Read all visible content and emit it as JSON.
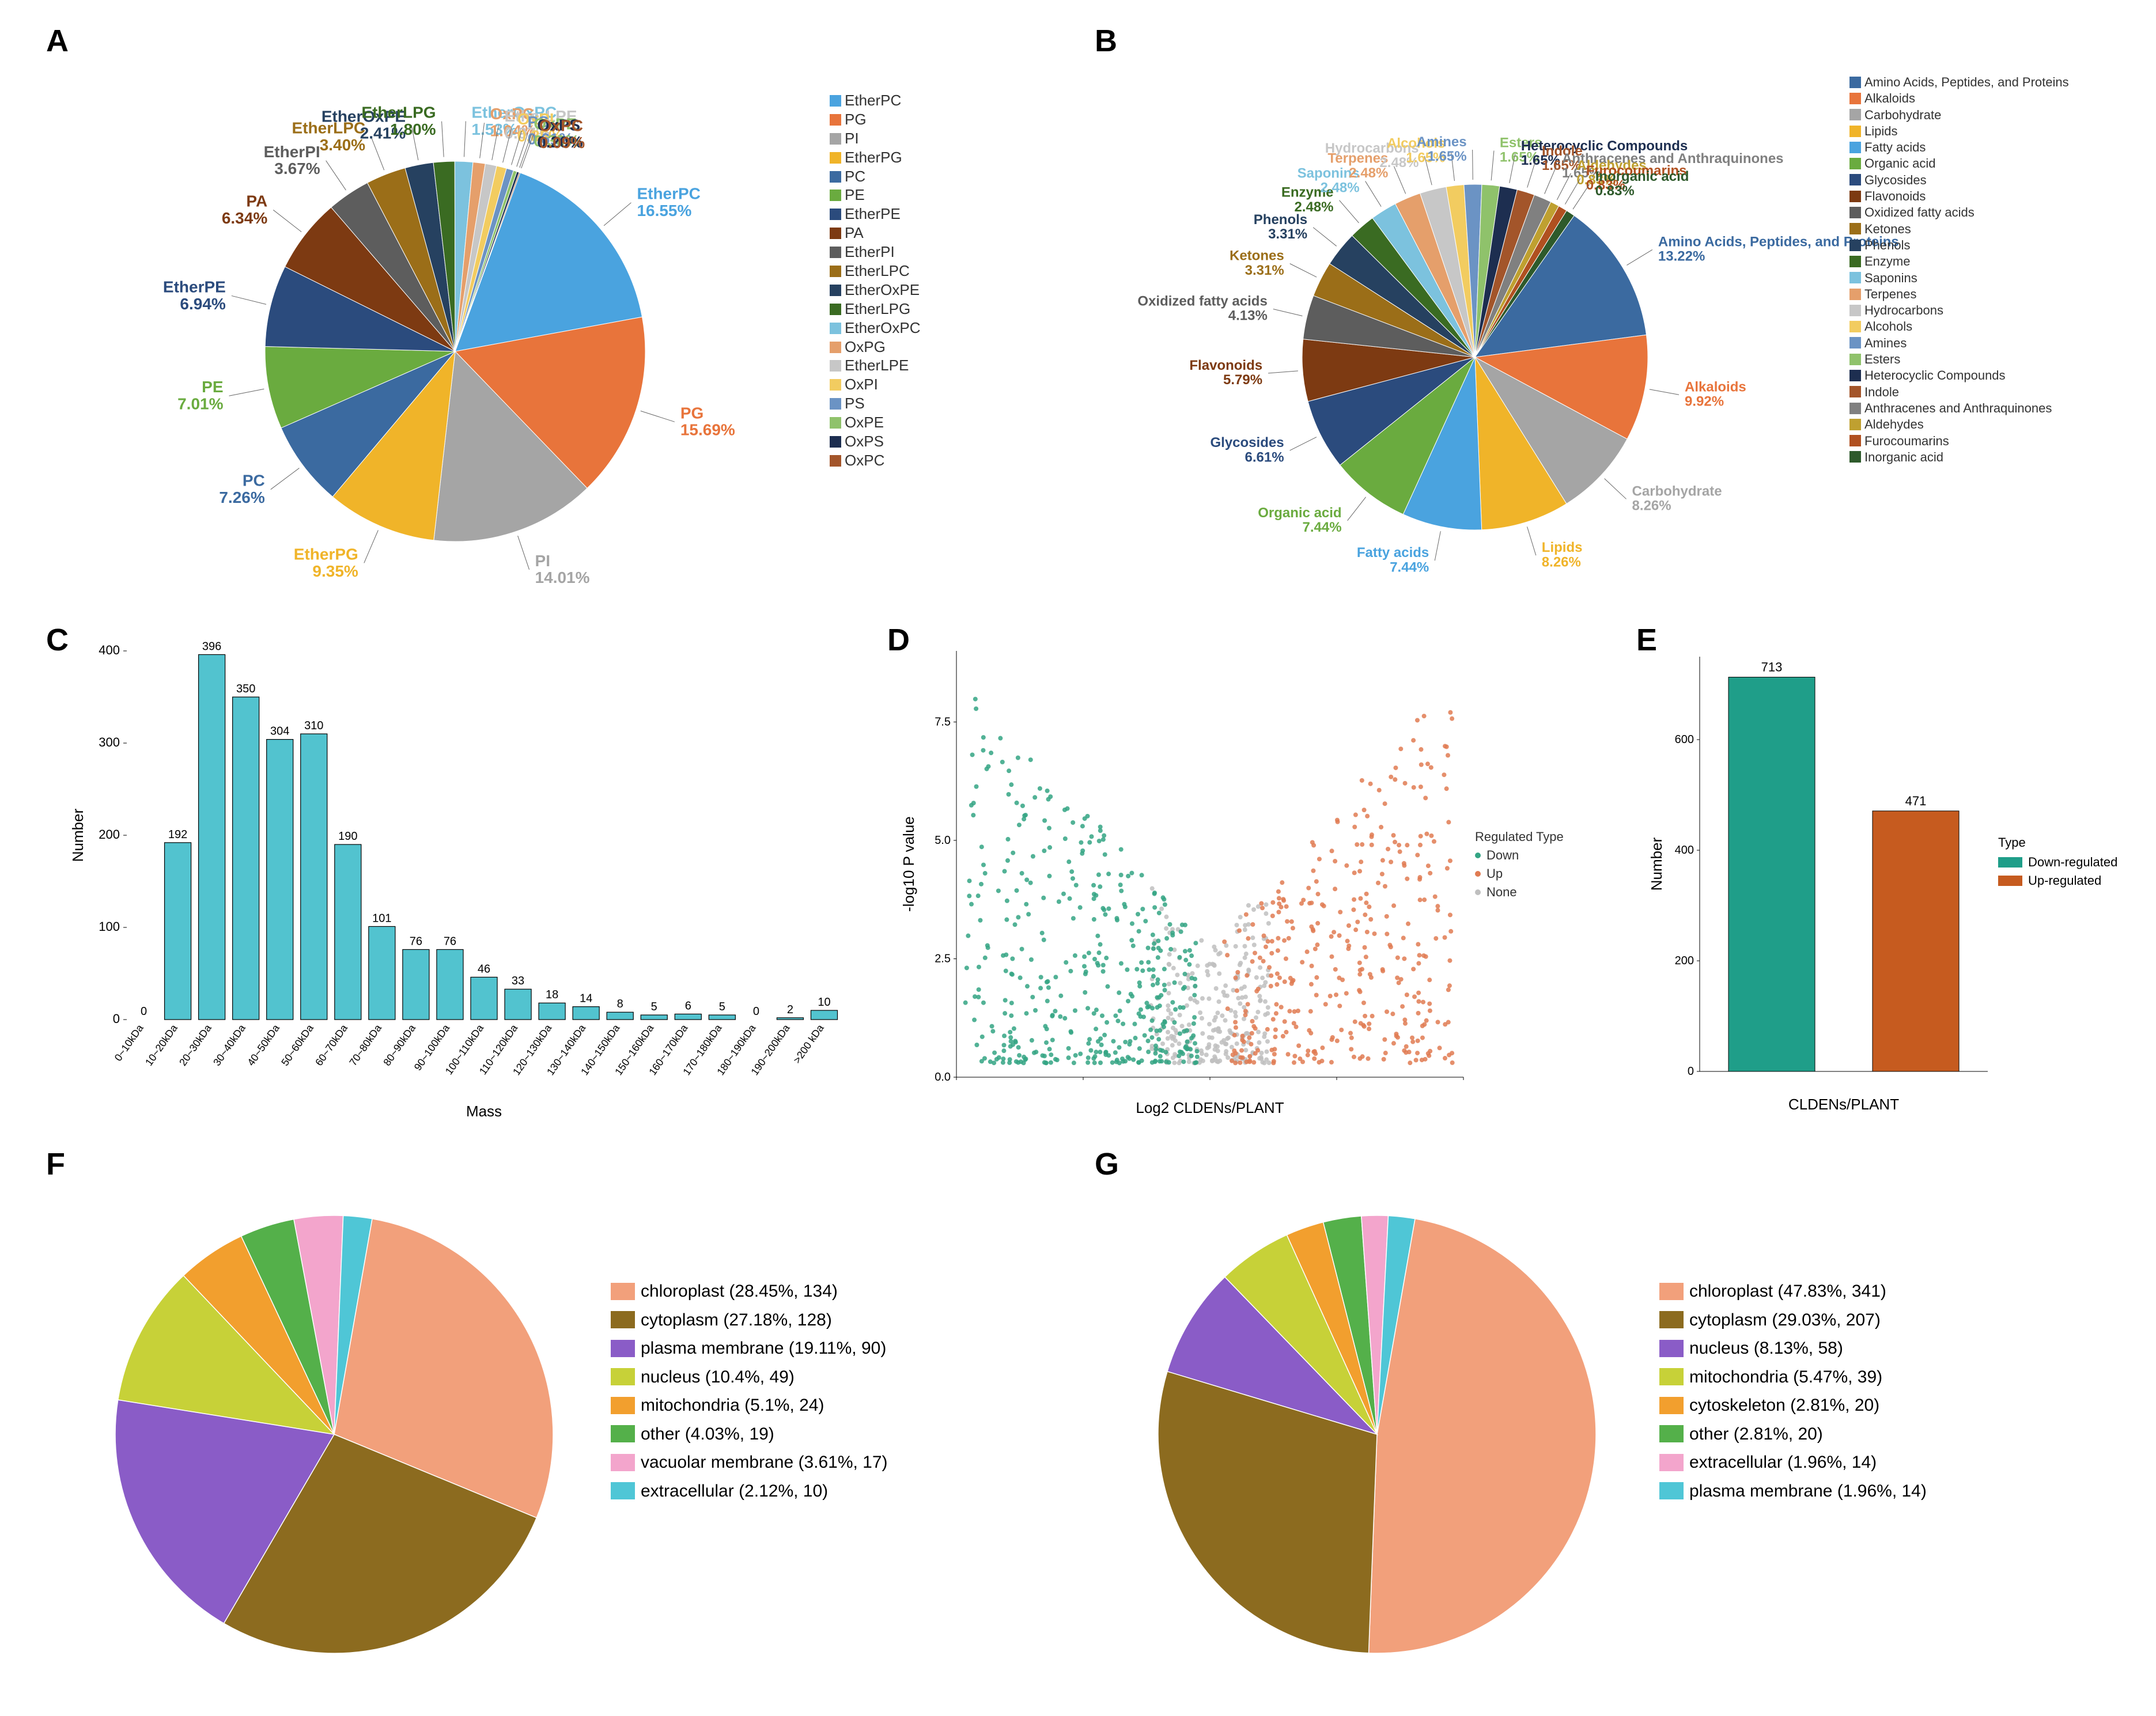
{
  "panels": {
    "A": "A",
    "B": "B",
    "C": "C",
    "D": "D",
    "E": "E",
    "F": "F",
    "G": "G"
  },
  "pieA": {
    "type": "pie",
    "title_fontsize": 28,
    "callout_fontsize": 28,
    "legend_fontsize": 26,
    "slices": [
      {
        "label": "EtherPC",
        "pct": 16.55,
        "color": "#4aa3df"
      },
      {
        "label": "PG",
        "pct": 15.69,
        "color": "#e8743b"
      },
      {
        "label": "PI",
        "pct": 14.01,
        "color": "#a5a5a5"
      },
      {
        "label": "EtherPG",
        "pct": 9.35,
        "color": "#f0b429"
      },
      {
        "label": "PC",
        "pct": 7.26,
        "color": "#3b6aa0"
      },
      {
        "label": "PE",
        "pct": 7.01,
        "color": "#6aab3f"
      },
      {
        "label": "EtherPE",
        "pct": 6.94,
        "color": "#2b4b7d"
      },
      {
        "label": "PA",
        "pct": 6.34,
        "color": "#7d3a12"
      },
      {
        "label": "EtherPI",
        "pct": 3.67,
        "color": "#5d5d5d"
      },
      {
        "label": "EtherLPC",
        "pct": 3.4,
        "color": "#9b6e18"
      },
      {
        "label": "EtherOxPE",
        "pct": 2.41,
        "color": "#264160"
      },
      {
        "label": "EtherLPG",
        "pct": 1.8,
        "color": "#3a6b22"
      },
      {
        "label": "EtherOxPC",
        "pct": 1.53,
        "color": "#7cc2de"
      },
      {
        "label": "OxPG",
        "pct": 1.04,
        "color": "#e59f6b"
      },
      {
        "label": "EtherLPE",
        "pct": 0.97,
        "color": "#c7c7c7"
      },
      {
        "label": "OxPI",
        "pct": 0.85,
        "color": "#f2cc60"
      },
      {
        "label": "PS",
        "pct": 0.61,
        "color": "#6b93c4"
      },
      {
        "label": "OxPE",
        "pct": 0.3,
        "color": "#8fc26b"
      },
      {
        "label": "OxPS",
        "pct": 0.2,
        "color": "#1d2e50"
      },
      {
        "label": "OxPC",
        "pct": 0.09,
        "color": "#a3552a"
      }
    ]
  },
  "pieB": {
    "type": "pie",
    "legend_fontsize": 22,
    "callout_fontsize": 24,
    "slices": [
      {
        "label": "Amino Acids, Peptides, and Proteins",
        "pct": 13.22,
        "color": "#3b6aa0"
      },
      {
        "label": "Alkaloids",
        "pct": 9.92,
        "color": "#e8743b"
      },
      {
        "label": "Carbohydrate",
        "pct": 8.26,
        "color": "#a5a5a5"
      },
      {
        "label": "Lipids",
        "pct": 8.26,
        "color": "#f0b429"
      },
      {
        "label": "Fatty acids",
        "pct": 7.44,
        "color": "#4aa3df"
      },
      {
        "label": "Organic acid",
        "pct": 7.44,
        "color": "#6aab3f"
      },
      {
        "label": "Glycosides",
        "pct": 6.61,
        "color": "#2b4b7d"
      },
      {
        "label": "Flavonoids",
        "pct": 5.79,
        "color": "#7d3a12"
      },
      {
        "label": "Oxidized fatty acids",
        "pct": 4.13,
        "color": "#5d5d5d"
      },
      {
        "label": "Ketones",
        "pct": 3.31,
        "color": "#9b6e18"
      },
      {
        "label": "Phenols",
        "pct": 3.31,
        "color": "#264160"
      },
      {
        "label": "Enzyme",
        "pct": 2.48,
        "color": "#3a6b22"
      },
      {
        "label": "Saponins",
        "pct": 2.48,
        "color": "#7cc2de"
      },
      {
        "label": "Terpenes",
        "pct": 2.48,
        "color": "#e59f6b"
      },
      {
        "label": "Hydrocarbons",
        "pct": 2.48,
        "color": "#c7c7c7"
      },
      {
        "label": "Alcohols",
        "pct": 1.65,
        "color": "#f2cc60"
      },
      {
        "label": "Amines",
        "pct": 1.65,
        "color": "#6b93c4"
      },
      {
        "label": "Esters",
        "pct": 1.65,
        "color": "#8fc26b"
      },
      {
        "label": "Heterocyclic Compounds",
        "pct": 1.65,
        "color": "#1d2e50"
      },
      {
        "label": "Indole",
        "pct": 1.65,
        "color": "#a3552a"
      },
      {
        "label": "Anthracenes and Anthraquinones",
        "pct": 1.65,
        "color": "#808080"
      },
      {
        "label": "Aldehydes",
        "pct": 0.83,
        "color": "#bfa030"
      },
      {
        "label": "Furocoumarins",
        "pct": 0.83,
        "color": "#b05020"
      },
      {
        "label": "Inorganic acid",
        "pct": 0.83,
        "color": "#2e5a2b"
      }
    ]
  },
  "barC": {
    "type": "bar",
    "xlabel": "Mass",
    "ylabel": "Number",
    "label_fontsize": 26,
    "ymax": 400,
    "ytick_step": 100,
    "bar_color": "#52c3cf",
    "bar_border": "#000",
    "background": "#ffffff",
    "grid": "#cccccc",
    "bar_width": 0.78,
    "categories": [
      "0~10kDa",
      "10~20kDa",
      "20~30kDa",
      "30~40kDa",
      "40~50kDa",
      "50~60kDa",
      "60~70kDa",
      "70~80kDa",
      "80~90kDa",
      "90~100kDa",
      "100~110kDa",
      "110~120kDa",
      "120~130kDa",
      "130~140kDa",
      "140~150kDa",
      "150~160kDa",
      "160~170kDa",
      "170~180kDa",
      "180~190kDa",
      "190~200kDa",
      ">200 kDa"
    ],
    "values": [
      0,
      192,
      396,
      350,
      304,
      310,
      190,
      101,
      76,
      76,
      46,
      33,
      18,
      14,
      8,
      5,
      6,
      5,
      0,
      2,
      10
    ]
  },
  "volcanoD": {
    "type": "scatter",
    "xlabel": "Log2  CLDENs/PLANT",
    "ylabel": "-log10 P value",
    "legend_title": "Regulated Type",
    "legend_fontsize": 22,
    "axis_fontsize": 26,
    "xlim": [
      -6,
      6
    ],
    "ylim": [
      0,
      9
    ],
    "ytick_step": 2.5,
    "xtick_step": 3,
    "colors": {
      "Down": "#34a584",
      "Up": "#e07b52",
      "None": "#bfbfbf"
    },
    "marker_size": 4,
    "seed": 7,
    "n_down": 420,
    "n_up": 360,
    "n_none": 260,
    "legend_items": [
      "Down",
      "Up",
      "None"
    ]
  },
  "barE": {
    "type": "bar",
    "xlabel": "CLDENs/PLANT",
    "ylabel": "Number",
    "label_fontsize": 26,
    "ymax": 750,
    "ytick_step": 200,
    "bar_width": 0.6,
    "legend_title": "Type",
    "legend_fontsize": 22,
    "series": [
      {
        "label": "Down-regulated",
        "value": 713,
        "color": "#1f9e89"
      },
      {
        "label": "Up-regulated",
        "value": 471,
        "color": "#c65b1f"
      }
    ]
  },
  "pieF": {
    "type": "pie",
    "legend_fontsize": 30,
    "slices": [
      {
        "label": "chloroplast",
        "pct": 28.45,
        "n": 134,
        "color": "#f2a07b"
      },
      {
        "label": "cytoplasm",
        "pct": 27.18,
        "n": 128,
        "color": "#8c6b1f"
      },
      {
        "label": "plasma membrane",
        "pct": 19.11,
        "n": 90,
        "color": "#8a5cc7"
      },
      {
        "label": "nucleus",
        "pct": 10.4,
        "n": 49,
        "color": "#c7d138"
      },
      {
        "label": "mitochondria",
        "pct": 5.1,
        "n": 24,
        "color": "#f29f2e"
      },
      {
        "label": "other",
        "pct": 4.03,
        "n": 19,
        "color": "#54b04a"
      },
      {
        "label": "vacuolar membrane",
        "pct": 3.61,
        "n": 17,
        "color": "#f3a5cc"
      },
      {
        "label": "extracellular",
        "pct": 2.12,
        "n": 10,
        "color": "#4fc6d6"
      }
    ]
  },
  "pieG": {
    "type": "pie",
    "legend_fontsize": 30,
    "slices": [
      {
        "label": "chloroplast",
        "pct": 47.83,
        "n": 341,
        "color": "#f2a07b"
      },
      {
        "label": "cytoplasm",
        "pct": 29.03,
        "n": 207,
        "color": "#8c6b1f"
      },
      {
        "label": "nucleus",
        "pct": 8.13,
        "n": 58,
        "color": "#8a5cc7"
      },
      {
        "label": "mitochondria",
        "pct": 5.47,
        "n": 39,
        "color": "#c7d138"
      },
      {
        "label": "cytoskeleton",
        "pct": 2.81,
        "n": 20,
        "color": "#f29f2e"
      },
      {
        "label": "other",
        "pct": 2.81,
        "n": 20,
        "color": "#54b04a"
      },
      {
        "label": "extracellular",
        "pct": 1.96,
        "n": 14,
        "color": "#f3a5cc"
      },
      {
        "label": "plasma membrane",
        "pct": 1.96,
        "n": 14,
        "color": "#4fc6d6"
      }
    ]
  }
}
